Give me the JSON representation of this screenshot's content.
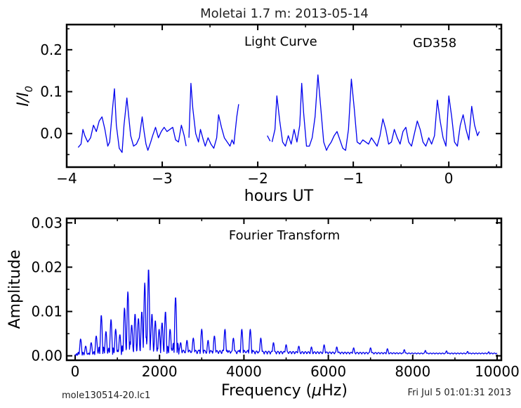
{
  "figure": {
    "title": "Moletai 1.7 m:  2013-05-14",
    "footer_left": "mole130514-20.lc1",
    "footer_right": "Fri Jul  5 01:01:31 2013"
  },
  "chart_data": [
    {
      "type": "line",
      "annotation_left": "Light Curve",
      "annotation_right": "GD358",
      "xlabel": "hours UT",
      "ylabel": "I/I₀",
      "ylabel_parts": {
        "main": "I/I",
        "sub": "0"
      },
      "xlim": [
        -4.0,
        0.55
      ],
      "ylim": [
        -0.08,
        0.26
      ],
      "xticks": [
        -4,
        -3,
        -2,
        -1,
        0
      ],
      "xtick_labels": [
        "−4",
        "−3",
        "−2",
        "−1",
        "0"
      ],
      "yticks": [
        0.0,
        0.1,
        0.2
      ],
      "ytick_labels": [
        "0.0",
        "0.1",
        "0.2"
      ],
      "line_color": "#0000ee",
      "grid": false,
      "segments": [
        {
          "x": [
            -3.88,
            -3.85,
            -3.83,
            -3.81,
            -3.78,
            -3.75,
            -3.72,
            -3.69,
            -3.66,
            -3.63,
            -3.6,
            -3.57,
            -3.55,
            -3.52,
            -3.5,
            -3.48,
            -3.45,
            -3.42,
            -3.4,
            -3.37,
            -3.35,
            -3.33,
            -3.3,
            -3.27,
            -3.24,
            -3.21,
            -3.19,
            -3.17,
            -3.15,
            -3.12,
            -3.1,
            -3.07,
            -3.04,
            -3.01,
            -2.98,
            -2.95,
            -2.92,
            -2.89,
            -2.86,
            -2.83,
            -2.8,
            -2.77,
            -2.75
          ],
          "y": [
            -0.033,
            -0.025,
            0.01,
            -0.005,
            -0.02,
            -0.01,
            0.02,
            0.005,
            0.03,
            0.04,
            0.01,
            -0.03,
            -0.02,
            0.06,
            0.107,
            0.02,
            -0.035,
            -0.045,
            0.02,
            0.085,
            0.04,
            -0.005,
            -0.03,
            -0.025,
            -0.01,
            0.04,
            0.005,
            -0.025,
            -0.04,
            -0.02,
            -0.005,
            0.015,
            -0.01,
            0.005,
            0.015,
            0.005,
            0.01,
            0.015,
            -0.015,
            -0.02,
            0.02,
            -0.005,
            -0.03
          ]
        },
        {
          "x": [
            -2.72,
            -2.7,
            -2.68,
            -2.65,
            -2.62,
            -2.6,
            -2.57,
            -2.55,
            -2.52,
            -2.49,
            -2.46,
            -2.43,
            -2.41,
            -2.38,
            -2.35,
            -2.32,
            -2.29,
            -2.27,
            -2.25,
            -2.22,
            -2.2
          ],
          "y": [
            -0.01,
            0.12,
            0.06,
            0.0,
            -0.02,
            0.01,
            -0.015,
            -0.03,
            -0.01,
            -0.025,
            -0.035,
            -0.01,
            0.045,
            0.015,
            -0.01,
            -0.02,
            -0.03,
            -0.015,
            -0.025,
            0.04,
            0.07
          ]
        },
        {
          "x": [
            -1.9,
            -1.87
          ],
          "y": [
            -0.005,
            -0.018
          ]
        },
        {
          "x": [
            -1.85,
            -1.82,
            -1.8,
            -1.77,
            -1.74,
            -1.71,
            -1.68,
            -1.65,
            -1.62,
            -1.59,
            -1.56,
            -1.54,
            -1.52,
            -1.49,
            -1.46,
            -1.43,
            -1.4,
            -1.37,
            -1.34,
            -1.31,
            -1.28,
            -1.26,
            -1.23,
            -1.2,
            -1.17,
            -1.14,
            -1.11,
            -1.08,
            -1.05,
            -1.02,
            -0.99,
            -0.96,
            -0.93,
            -0.9,
            -0.87,
            -0.84,
            -0.81,
            -0.78,
            -0.75,
            -0.72,
            -0.69,
            -0.66,
            -0.63,
            -0.6,
            -0.57,
            -0.54,
            -0.51,
            -0.48,
            -0.45,
            -0.42,
            -0.39,
            -0.36,
            -0.33,
            -0.3,
            -0.27,
            -0.24,
            -0.21,
            -0.18,
            -0.15,
            -0.12,
            -0.09,
            -0.06,
            -0.03,
            0.0,
            0.03,
            0.06,
            0.09,
            0.12,
            0.15,
            0.18,
            0.21,
            0.24,
            0.27,
            0.3,
            0.32
          ],
          "y": [
            -0.02,
            0.01,
            0.09,
            0.03,
            -0.02,
            -0.03,
            -0.005,
            -0.025,
            0.01,
            -0.02,
            0.02,
            0.12,
            0.05,
            -0.03,
            -0.03,
            -0.01,
            0.04,
            0.14,
            0.06,
            -0.02,
            -0.04,
            -0.03,
            -0.02,
            -0.005,
            0.005,
            -0.015,
            -0.035,
            -0.04,
            0.01,
            0.13,
            0.06,
            -0.02,
            -0.025,
            -0.015,
            -0.02,
            -0.025,
            -0.01,
            -0.02,
            -0.03,
            -0.005,
            0.035,
            0.01,
            -0.025,
            -0.02,
            0.01,
            -0.01,
            -0.025,
            0.005,
            0.015,
            -0.02,
            -0.03,
            0.0,
            0.03,
            0.01,
            -0.02,
            -0.03,
            -0.01,
            -0.025,
            -0.005,
            0.08,
            0.03,
            -0.01,
            -0.03,
            0.09,
            0.04,
            -0.02,
            -0.03,
            0.02,
            0.045,
            0.01,
            -0.015,
            0.065,
            0.02,
            -0.005,
            0.005
          ]
        }
      ]
    },
    {
      "type": "line",
      "annotation": "Fourier Transform",
      "xlabel": "Frequency (μHz)",
      "xlabel_parts": {
        "pre": "Frequency (",
        "mu": "μ",
        "post": "Hz)"
      },
      "ylabel": "Amplitude",
      "xlim": [
        -200,
        10100
      ],
      "ylim": [
        -0.001,
        0.031
      ],
      "xticks": [
        0,
        2000,
        4000,
        6000,
        8000,
        10000
      ],
      "xtick_labels": [
        "0",
        "2000",
        "4000",
        "6000",
        "8000",
        "10000"
      ],
      "yticks": [
        0.0,
        0.01,
        0.02,
        0.03
      ],
      "ytick_labels": [
        "0.00",
        "0.01",
        "0.02",
        "0.03"
      ],
      "line_color": "#0000ee",
      "grid": false,
      "peaks": [
        {
          "f": 130,
          "a": 0.0038
        },
        {
          "f": 250,
          "a": 0.0022
        },
        {
          "f": 380,
          "a": 0.003
        },
        {
          "f": 500,
          "a": 0.0045
        },
        {
          "f": 620,
          "a": 0.0092
        },
        {
          "f": 730,
          "a": 0.0055
        },
        {
          "f": 850,
          "a": 0.0082
        },
        {
          "f": 960,
          "a": 0.006
        },
        {
          "f": 1060,
          "a": 0.0048
        },
        {
          "f": 1170,
          "a": 0.0108
        },
        {
          "f": 1250,
          "a": 0.0145
        },
        {
          "f": 1340,
          "a": 0.007
        },
        {
          "f": 1420,
          "a": 0.0095
        },
        {
          "f": 1500,
          "a": 0.0085
        },
        {
          "f": 1580,
          "a": 0.01
        },
        {
          "f": 1650,
          "a": 0.0165
        },
        {
          "f": 1740,
          "a": 0.0197
        },
        {
          "f": 1820,
          "a": 0.0095
        },
        {
          "f": 1900,
          "a": 0.008
        },
        {
          "f": 1990,
          "a": 0.006
        },
        {
          "f": 2060,
          "a": 0.0075
        },
        {
          "f": 2140,
          "a": 0.01
        },
        {
          "f": 2250,
          "a": 0.006
        },
        {
          "f": 2380,
          "a": 0.0133
        },
        {
          "f": 2500,
          "a": 0.003
        },
        {
          "f": 2650,
          "a": 0.0035
        },
        {
          "f": 2800,
          "a": 0.004
        },
        {
          "f": 3000,
          "a": 0.006
        },
        {
          "f": 3150,
          "a": 0.0035
        },
        {
          "f": 3300,
          "a": 0.0045
        },
        {
          "f": 3550,
          "a": 0.006
        },
        {
          "f": 3750,
          "a": 0.004
        },
        {
          "f": 3950,
          "a": 0.006
        },
        {
          "f": 4150,
          "a": 0.006
        },
        {
          "f": 4400,
          "a": 0.004
        },
        {
          "f": 4700,
          "a": 0.003
        },
        {
          "f": 5000,
          "a": 0.0025
        },
        {
          "f": 5300,
          "a": 0.0022
        },
        {
          "f": 5600,
          "a": 0.002
        },
        {
          "f": 5900,
          "a": 0.0025
        },
        {
          "f": 6200,
          "a": 0.002
        },
        {
          "f": 6600,
          "a": 0.0018
        },
        {
          "f": 7000,
          "a": 0.0018
        },
        {
          "f": 7400,
          "a": 0.0016
        },
        {
          "f": 7800,
          "a": 0.0014
        },
        {
          "f": 8300,
          "a": 0.0012
        },
        {
          "f": 8800,
          "a": 0.0011
        },
        {
          "f": 9300,
          "a": 0.001
        },
        {
          "f": 9800,
          "a": 0.0009
        }
      ]
    }
  ]
}
